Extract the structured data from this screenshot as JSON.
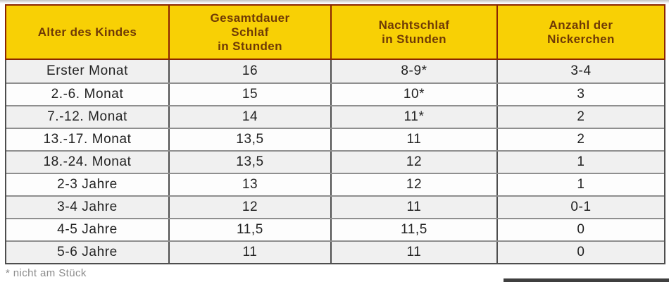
{
  "colors": {
    "header_bg": "#F8D005",
    "header_text": "#6F3A06",
    "header_border": "#8A2503",
    "body_border_dark": "#4E4E4E",
    "row_separator": "#8F8F8F",
    "row_alt_bg": "#F0F0F0",
    "row_bg": "#FDFDFD",
    "body_text": "#222222",
    "footnote_text": "#8C8C8C",
    "bottom_bar": "#3F3F3F"
  },
  "chart_data": {
    "type": "table",
    "columns": [
      "Alter des Kindes",
      "Gesamtdauer\nSchlaf\nin Stunden",
      "Nachtschlaf\nin Stunden",
      "Anzahl der\nNickerchen"
    ],
    "rows": [
      {
        "age": "Erster Monat",
        "total_sleep": "16",
        "night_sleep": "8-9*",
        "naps": "3-4"
      },
      {
        "age": "2.-6. Monat",
        "total_sleep": "15",
        "night_sleep": "10*",
        "naps": "3"
      },
      {
        "age": "7.-12. Monat",
        "total_sleep": "14",
        "night_sleep": "11*",
        "naps": "2"
      },
      {
        "age": "13.-17. Monat",
        "total_sleep": "13,5",
        "night_sleep": "11",
        "naps": "2"
      },
      {
        "age": "18.-24. Monat",
        "total_sleep": "13,5",
        "night_sleep": "12",
        "naps": "1"
      },
      {
        "age": "2-3 Jahre",
        "total_sleep": "13",
        "night_sleep": "12",
        "naps": "1"
      },
      {
        "age": "3-4 Jahre",
        "total_sleep": "12",
        "night_sleep": "11",
        "naps": "0-1"
      },
      {
        "age": "4-5 Jahre",
        "total_sleep": "11,5",
        "night_sleep": "11,5",
        "naps": "0"
      },
      {
        "age": "5-6 Jahre",
        "total_sleep": "11",
        "night_sleep": "11",
        "naps": "0"
      }
    ],
    "footnote": "* nicht am Stück"
  }
}
